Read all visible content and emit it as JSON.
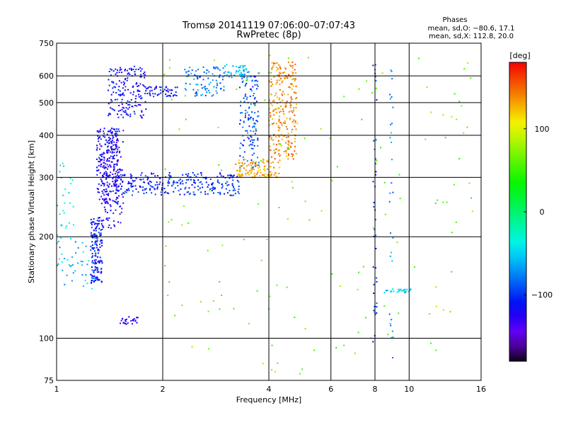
{
  "chart_data": {
    "type": "scatter",
    "title": "Tromsø 20141119 07:06:00–07:07:43",
    "subtitle": "RwPretec (8p)",
    "xlabel": "Frequency [MHz]",
    "ylabel": "Stationary phase Virtual Height [km]",
    "xscale": "log",
    "yscale": "log",
    "xlim": [
      1,
      16
    ],
    "ylim": [
      75,
      750
    ],
    "x_ticks": [
      1,
      2,
      4,
      6,
      8,
      10,
      16
    ],
    "y_ticks": [
      75,
      100,
      200,
      300,
      400,
      500,
      600,
      750
    ],
    "grid": true,
    "legend_info": {
      "heading": "Phases",
      "line_o": "mean, sd,O: −80.6, 17.1",
      "line_x": "mean, sd,X: 112.8, 20.0"
    },
    "colorbar": {
      "label": "[deg]",
      "range": [
        -180,
        180
      ],
      "ticks": [
        100,
        0,
        -100
      ]
    },
    "traces": [
      {
        "x0": 1.25,
        "x1": 1.35,
        "y0": 145,
        "y1": 230,
        "phase": -110,
        "count": 160
      },
      {
        "x0": 1.3,
        "x1": 1.5,
        "y0": 250,
        "y1": 420,
        "phase": -120,
        "count": 230
      },
      {
        "x0": 1.4,
        "x1": 1.8,
        "y0": 450,
        "y1": 640,
        "phase": -115,
        "count": 170
      },
      {
        "x0": 1.35,
        "x1": 1.55,
        "y0": 210,
        "y1": 420,
        "phase": -125,
        "count": 120
      },
      {
        "x0": 1.5,
        "x1": 3.3,
        "y0": 265,
        "y1": 310,
        "phase": -105,
        "count": 260
      },
      {
        "x0": 1.8,
        "x1": 2.2,
        "y0": 520,
        "y1": 560,
        "phase": -110,
        "count": 50
      },
      {
        "x0": 2.3,
        "x1": 3.0,
        "y0": 520,
        "y1": 640,
        "phase": -80,
        "count": 90
      },
      {
        "x0": 3.0,
        "x1": 3.5,
        "y0": 590,
        "y1": 650,
        "phase": -60,
        "count": 40
      },
      {
        "x0": 3.3,
        "x1": 3.75,
        "y0": 320,
        "y1": 620,
        "phase": -90,
        "count": 140
      },
      {
        "x0": 3.2,
        "x1": 4.3,
        "y0": 300,
        "y1": 340,
        "phase": 130,
        "count": 120
      },
      {
        "x0": 4.0,
        "x1": 4.8,
        "y0": 340,
        "y1": 660,
        "phase": 140,
        "count": 260
      },
      {
        "x0": 1.0,
        "x1": 1.3,
        "y0": 140,
        "y1": 200,
        "phase": -60,
        "count": 50
      },
      {
        "x0": 1.0,
        "x1": 1.12,
        "y0": 200,
        "y1": 340,
        "phase": -40,
        "count": 25
      },
      {
        "x0": 1.5,
        "x1": 1.7,
        "y0": 110,
        "y1": 116,
        "phase": -120,
        "count": 25
      },
      {
        "x0": 8.5,
        "x1": 10.2,
        "y0": 136,
        "y1": 140,
        "phase": -50,
        "count": 30
      },
      {
        "x0": 7.9,
        "x1": 8.1,
        "y0": 80,
        "y1": 650,
        "phase": -100,
        "count": 40
      },
      {
        "x0": 8.8,
        "x1": 9.0,
        "y0": 80,
        "y1": 650,
        "phase": -70,
        "count": 30
      },
      {
        "x0": 2.0,
        "x1": 16.0,
        "y0": 75,
        "y1": 700,
        "phase": 60,
        "count": 150
      }
    ]
  }
}
